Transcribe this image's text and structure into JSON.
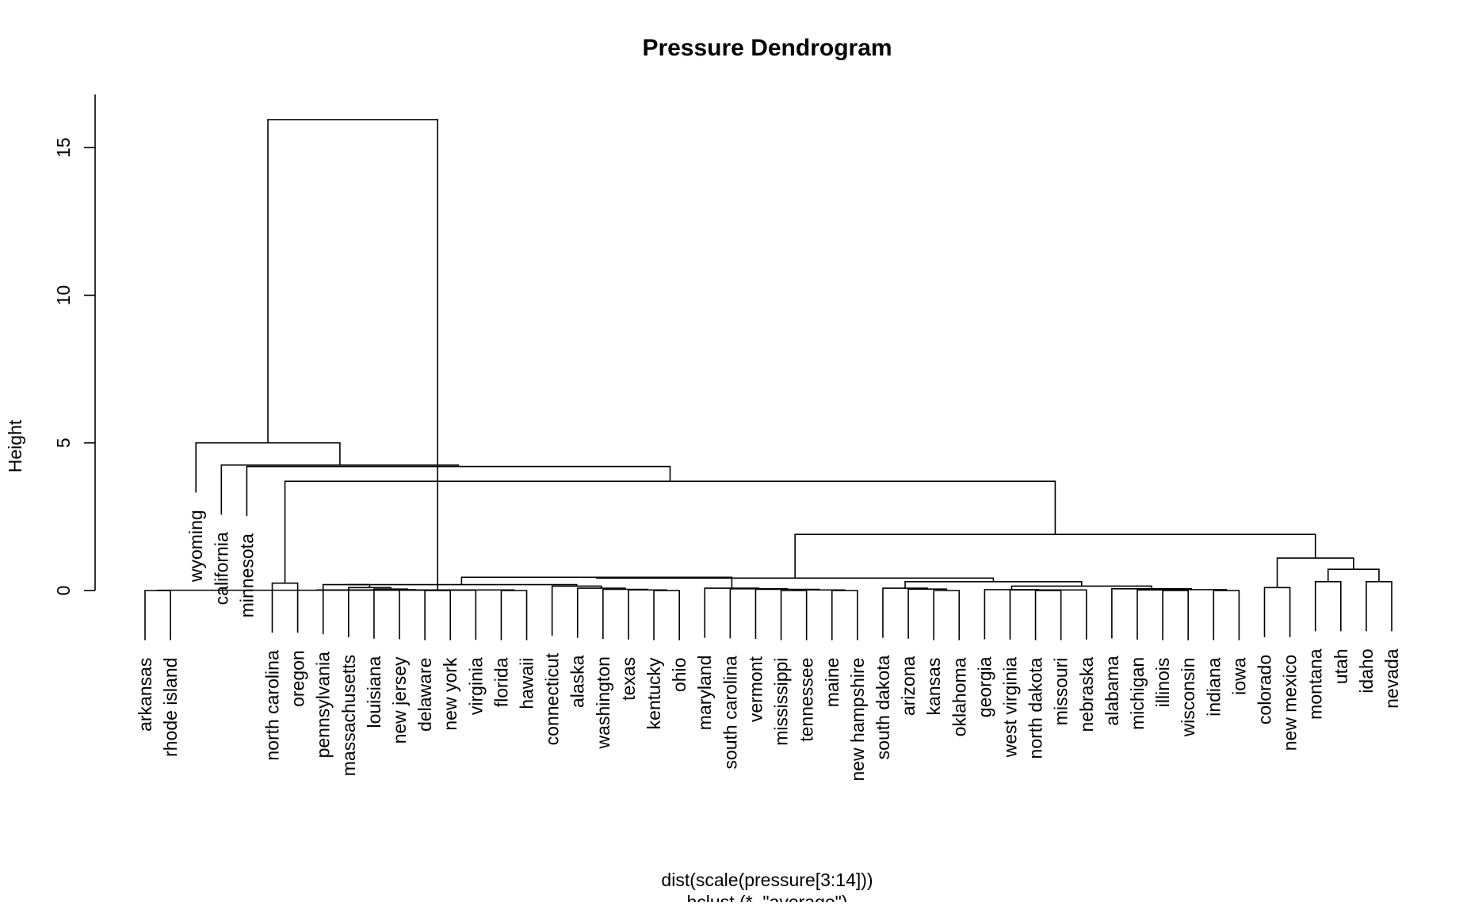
{
  "chart_data": {
    "type": "dendrogram",
    "title": "Pressure Dendrogram",
    "ylabel": "Height",
    "xlabel_lines": [
      "dist(scale(pressure[3:14]))",
      "hclust (*, \"average\")"
    ],
    "yticks": [
      0,
      5,
      10,
      15
    ],
    "ylim": [
      0,
      16.8
    ],
    "leaves": [
      "arkansas",
      "rhode island",
      "wyoming",
      "california",
      "minnesota",
      "north carolina",
      "oregon",
      "pennsylvania",
      "massachusetts",
      "louisiana",
      "new jersey",
      "delaware",
      "new york",
      "virginia",
      "florida",
      "hawaii",
      "connecticut",
      "alaska",
      "washington",
      "texas",
      "kentucky",
      "ohio",
      "maryland",
      "south carolina",
      "vermont",
      "mississippi",
      "tennessee",
      "maine",
      "new hampshire",
      "south dakota",
      "arizona",
      "kansas",
      "oklahoma",
      "georgia",
      "west virginia",
      "north dakota",
      "missouri",
      "nebraska",
      "alabama",
      "michigan",
      "illinois",
      "wisconsin",
      "indiana",
      "iowa",
      "colorado",
      "new mexico",
      "montana",
      "utah",
      "idaho",
      "nevada"
    ],
    "merges": [
      [
        -1,
        -2,
        0.0
      ],
      [
        -12,
        -13,
        0.0
      ],
      [
        1,
        -14,
        0.01
      ],
      [
        -15,
        -16,
        0.0
      ],
      [
        3,
        4,
        0.02
      ],
      [
        -11,
        5,
        0.03
      ],
      [
        -10,
        6,
        0.05
      ],
      [
        -9,
        7,
        0.1
      ],
      [
        -8,
        8,
        0.2
      ],
      [
        -21,
        -22,
        0.0
      ],
      [
        -20,
        10,
        0.02
      ],
      [
        -19,
        11,
        0.04
      ],
      [
        -18,
        12,
        0.08
      ],
      [
        -17,
        13,
        0.15
      ],
      [
        9,
        14,
        0.2
      ],
      [
        -26,
        -27,
        0.0
      ],
      [
        -28,
        -29,
        0.0
      ],
      [
        16,
        17,
        0.02
      ],
      [
        -25,
        18,
        0.04
      ],
      [
        -24,
        19,
        0.06
      ],
      [
        -23,
        20,
        0.08
      ],
      [
        15,
        21,
        0.45
      ],
      [
        -32,
        -33,
        0.0
      ],
      [
        -31,
        23,
        0.05
      ],
      [
        -30,
        24,
        0.08
      ],
      [
        -36,
        -37,
        0.0
      ],
      [
        26,
        -38,
        0.02
      ],
      [
        -35,
        27,
        0.02
      ],
      [
        -34,
        28,
        0.03
      ],
      [
        -41,
        -42,
        0.0
      ],
      [
        -40,
        30,
        0.02
      ],
      [
        -43,
        -44,
        0.0
      ],
      [
        31,
        32,
        0.03
      ],
      [
        -39,
        33,
        0.06
      ],
      [
        29,
        34,
        0.15
      ],
      [
        25,
        35,
        0.3
      ],
      [
        22,
        36,
        0.42
      ],
      [
        -45,
        -46,
        0.1
      ],
      [
        -47,
        -48,
        0.3
      ],
      [
        -49,
        -50,
        0.3
      ],
      [
        39,
        40,
        0.72
      ],
      [
        38,
        41,
        1.1
      ],
      [
        37,
        42,
        1.9
      ],
      [
        -6,
        -7,
        0.25
      ],
      [
        44,
        43,
        3.7
      ],
      [
        -5,
        45,
        4.2
      ],
      [
        -4,
        46,
        4.25
      ],
      [
        -3,
        47,
        5.0
      ],
      [
        2,
        48,
        15.95
      ]
    ]
  }
}
